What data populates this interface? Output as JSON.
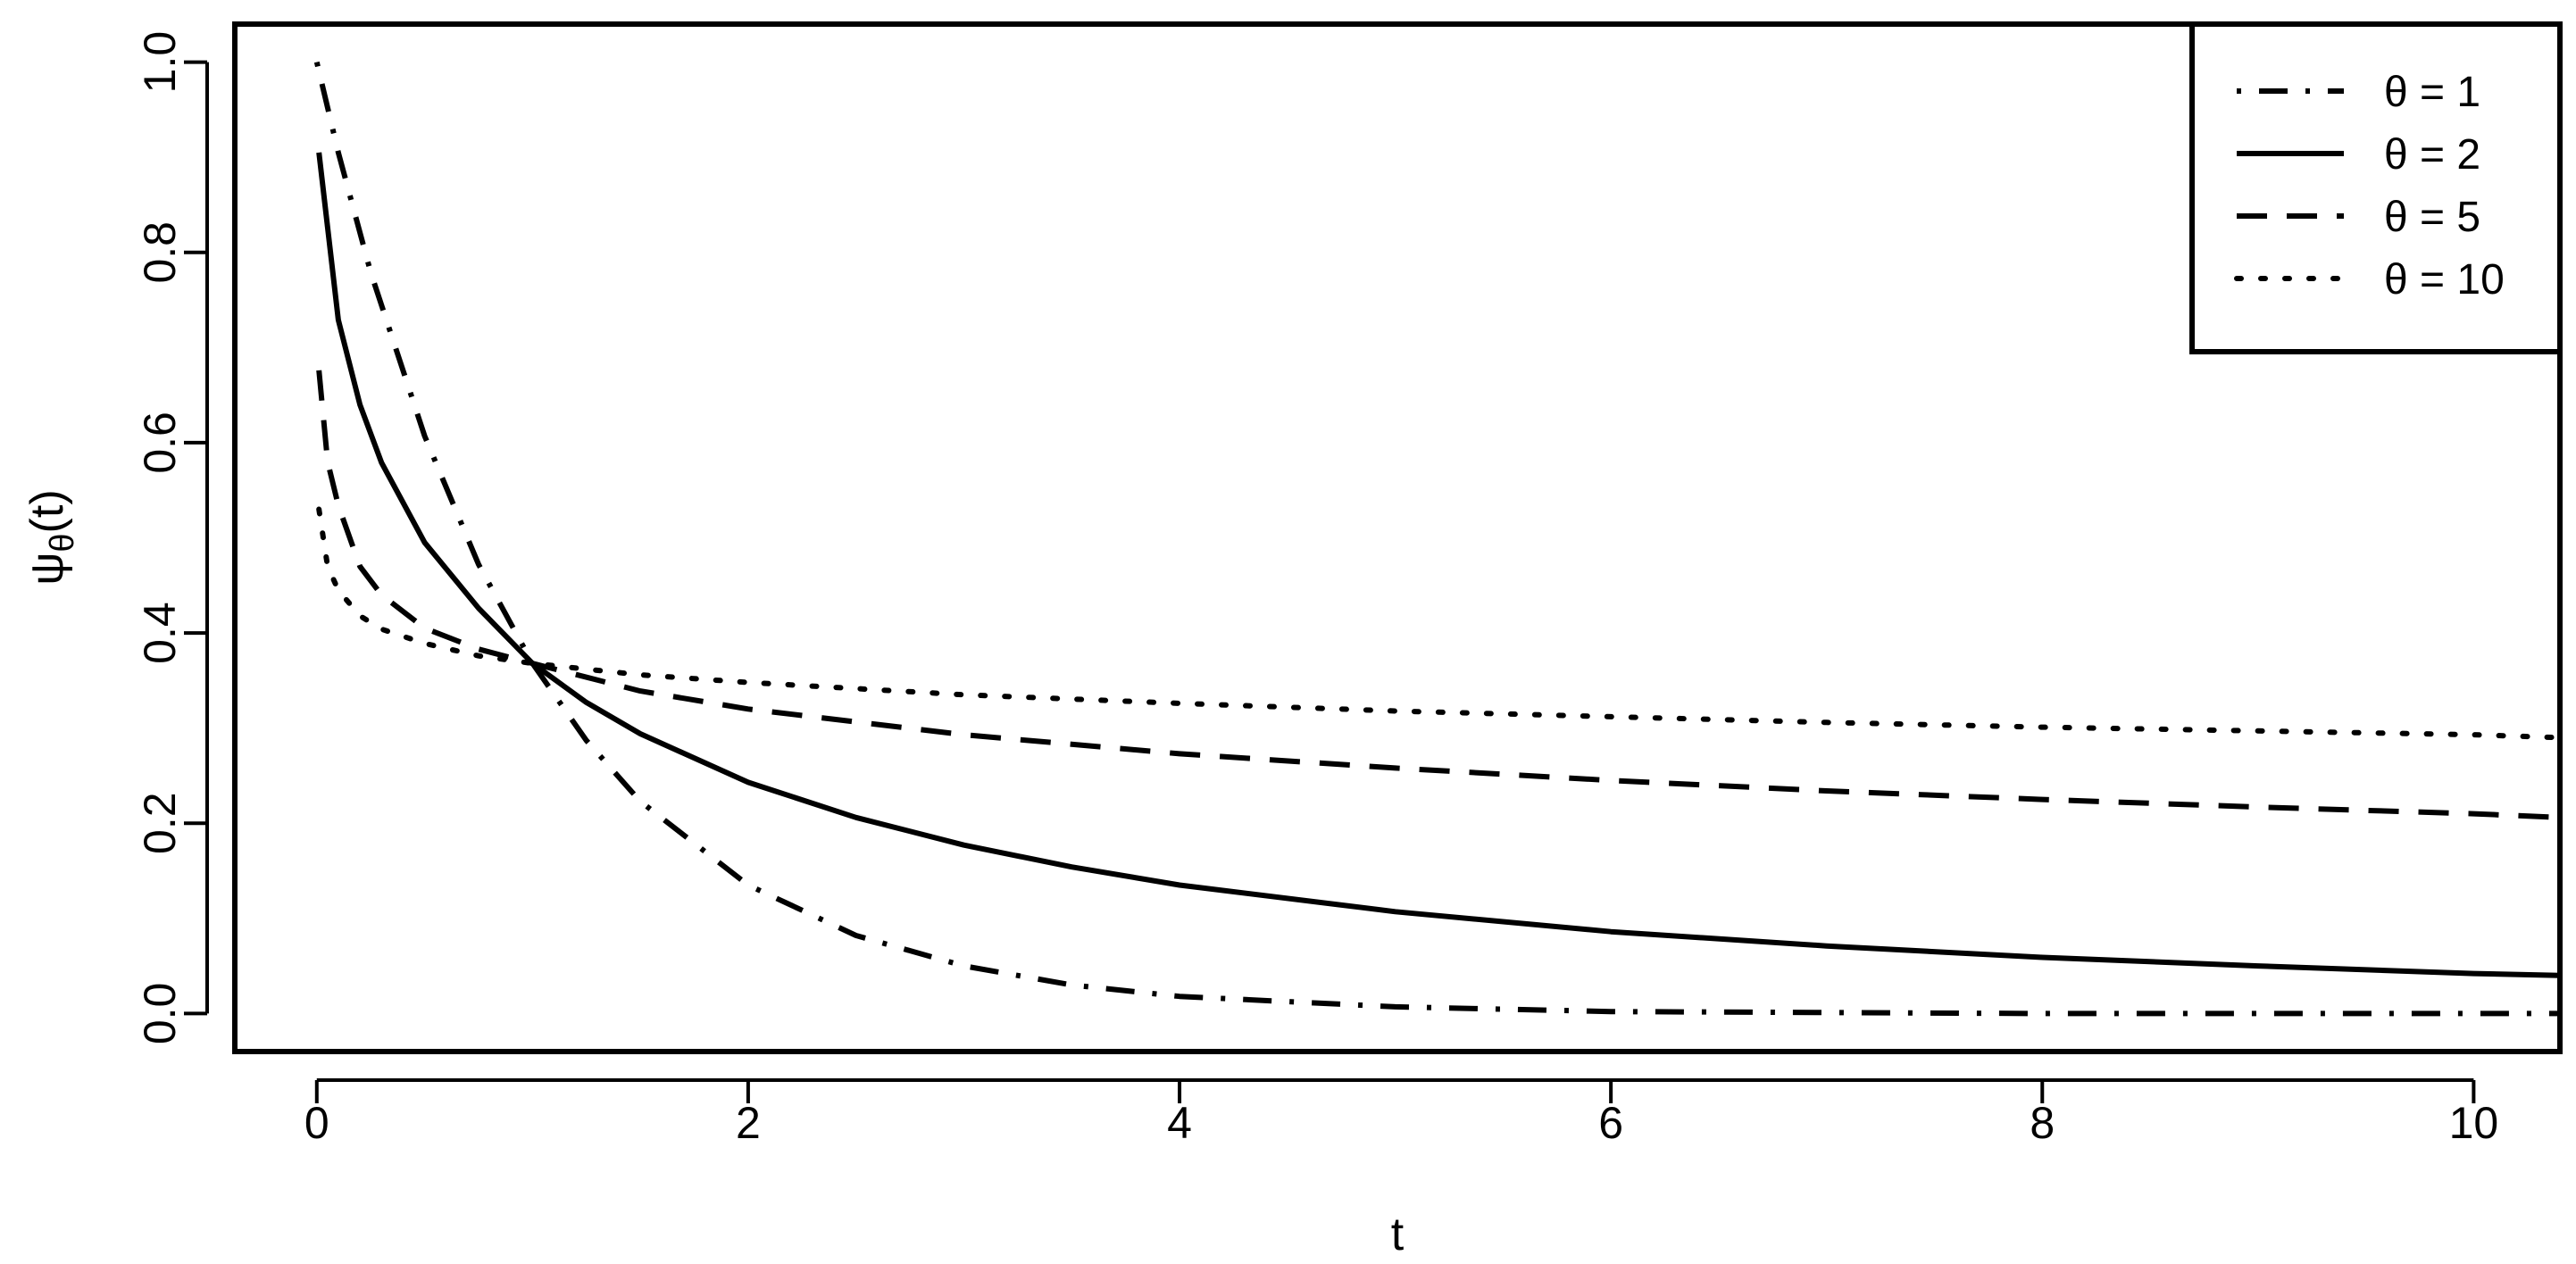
{
  "chart_data": {
    "type": "line",
    "xlabel": "t",
    "ylabel": {
      "main": "ψ",
      "sub": "θ",
      "tail": "(t)"
    },
    "xlim": [
      -0.38,
      10.4
    ],
    "ylim": [
      -0.04,
      1.04
    ],
    "x_ticks": [
      0,
      2,
      4,
      6,
      8,
      10
    ],
    "x_tick_labels": [
      "0",
      "2",
      "4",
      "6",
      "8",
      "10"
    ],
    "y_ticks": [
      0.0,
      0.2,
      0.4,
      0.6,
      0.8,
      1.0
    ],
    "y_tick_labels": [
      "0.0",
      "0.2",
      "0.4",
      "0.6",
      "0.8",
      "1.0"
    ],
    "grid": false,
    "legend_position": "top-right",
    "series": [
      {
        "name": "θ = 1",
        "line_style": "dotdash",
        "x": [
          0,
          0.1,
          0.25,
          0.5,
          0.75,
          1,
          1.25,
          1.5,
          2,
          2.5,
          3,
          3.5,
          4,
          5,
          6,
          7,
          8,
          9,
          10,
          10.4
        ],
        "y": [
          1.0,
          0.905,
          0.779,
          0.607,
          0.472,
          0.368,
          0.287,
          0.223,
          0.135,
          0.082,
          0.05,
          0.03,
          0.018,
          0.007,
          0.002,
          0.001,
          0.0,
          0.0,
          0.0,
          0.0
        ]
      },
      {
        "name": "θ = 2",
        "line_style": "solid",
        "x": [
          0.01,
          0.1,
          0.2,
          0.3,
          0.5,
          0.75,
          1,
          1.25,
          1.5,
          2,
          2.5,
          3,
          3.5,
          4,
          5,
          6,
          7,
          8,
          9,
          10,
          10.4
        ],
        "y": [
          0.905,
          0.729,
          0.64,
          0.579,
          0.495,
          0.426,
          0.368,
          0.327,
          0.294,
          0.243,
          0.206,
          0.177,
          0.154,
          0.135,
          0.107,
          0.086,
          0.071,
          0.059,
          0.05,
          0.042,
          0.04
        ],
        "y_display_override": null
      },
      {
        "name": "θ = 5",
        "line_style": "dashed",
        "x": [
          0.01,
          0.05,
          0.1,
          0.2,
          0.3,
          0.5,
          0.75,
          1,
          1.5,
          2,
          3,
          4,
          5,
          6,
          7,
          8,
          9,
          10,
          10.4
        ],
        "y": [
          0.676,
          0.58,
          0.534,
          0.47,
          0.44,
          0.405,
          0.383,
          0.368,
          0.339,
          0.32,
          0.293,
          0.273,
          0.258,
          0.245,
          0.234,
          0.225,
          0.217,
          0.21,
          0.206
        ]
      },
      {
        "name": "θ = 10",
        "line_style": "dotted",
        "x": [
          0.01,
          0.05,
          0.1,
          0.2,
          0.3,
          0.5,
          0.75,
          1,
          1.5,
          2,
          3,
          4,
          5,
          6,
          7,
          8,
          9,
          10,
          10.4
        ],
        "y": [
          0.53,
          0.47,
          0.445,
          0.418,
          0.404,
          0.389,
          0.376,
          0.368,
          0.356,
          0.348,
          0.335,
          0.326,
          0.318,
          0.312,
          0.306,
          0.301,
          0.297,
          0.293,
          0.29
        ]
      }
    ]
  },
  "colors": {
    "ink": "#000000",
    "background": "#ffffff"
  }
}
